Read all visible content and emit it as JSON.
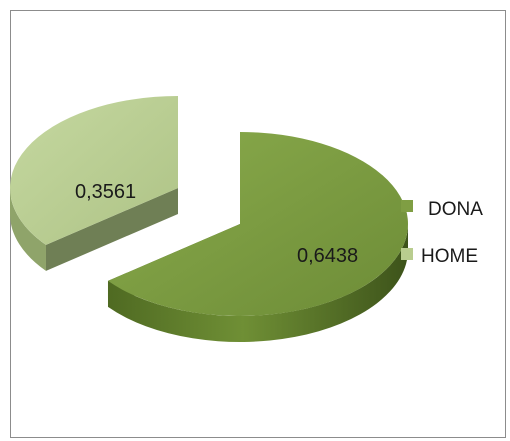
{
  "chart_data": {
    "type": "pie",
    "style": "3d-exploded",
    "slices": [
      {
        "label": "DONA",
        "value": 0.6438,
        "value_label": "0,6438",
        "color": "#7f9e43",
        "dark": "#4f6a22",
        "side": "#5e7d2c"
      },
      {
        "label": "HOME",
        "value": 0.3561,
        "value_label": "0,3561",
        "color": "#b9cd8f",
        "dark": "#6f7f55",
        "side": "#8fa46a"
      }
    ],
    "legend": {
      "position": "right",
      "items": [
        "DONA",
        "HOME"
      ]
    }
  }
}
